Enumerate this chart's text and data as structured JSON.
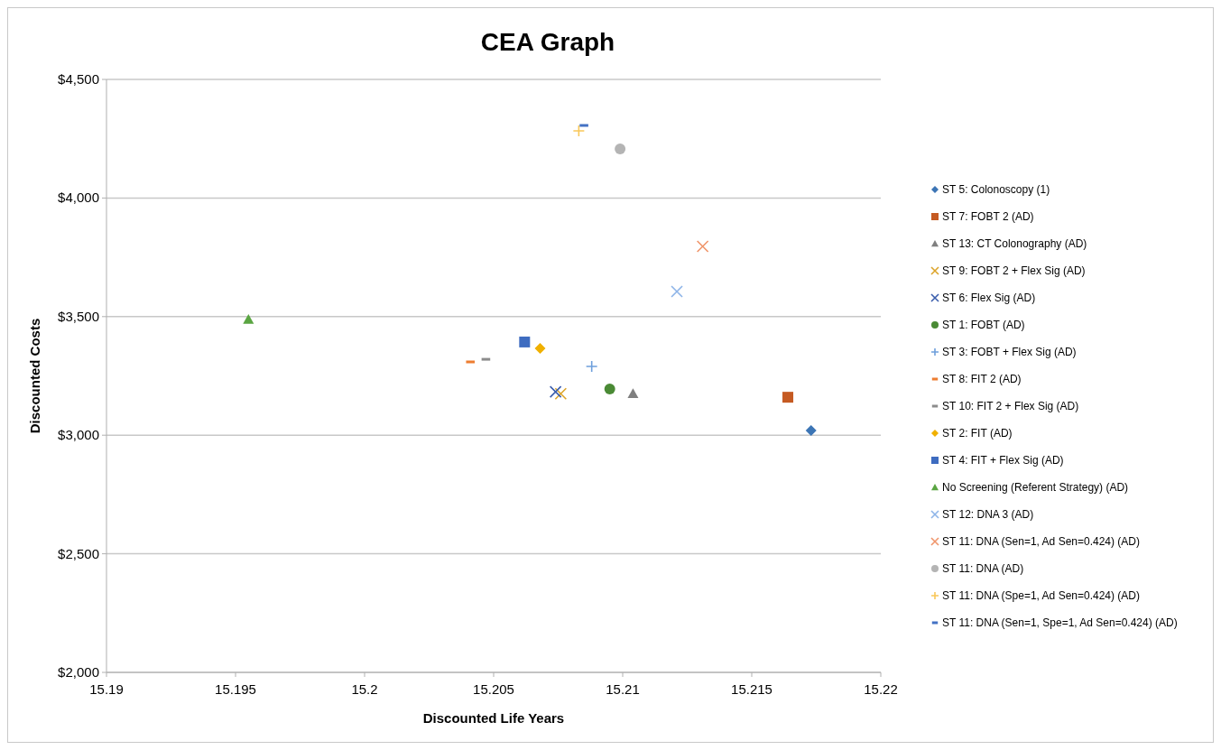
{
  "chart_data": {
    "type": "scatter",
    "title": "CEA Graph",
    "xlabel": "Discounted Life Years",
    "ylabel": "Discounted Costs",
    "xlim": [
      15.19,
      15.22
    ],
    "xticks": [
      15.19,
      15.195,
      15.2,
      15.205,
      15.21,
      15.215,
      15.22
    ],
    "ylim": [
      2000,
      4500
    ],
    "yticks": [
      {
        "value": 2000,
        "label": "$2,000"
      },
      {
        "value": 2500,
        "label": "$2,500"
      },
      {
        "value": 3000,
        "label": "$3,000"
      },
      {
        "value": 3500,
        "label": "$3,500"
      },
      {
        "value": 4000,
        "label": "$4,000"
      },
      {
        "value": 4500,
        "label": "$4,500"
      }
    ],
    "grid": "y",
    "legend": "right",
    "series": [
      {
        "name": "ST 5: Colonoscopy (1)",
        "color": "#3c75b5",
        "marker": "diamond",
        "x": [
          15.2173
        ],
        "values": [
          3020
        ]
      },
      {
        "name": "ST 7: FOBT 2 (AD)",
        "color": "#c55a22",
        "marker": "square",
        "x": [
          15.2164
        ],
        "values": [
          3160
        ]
      },
      {
        "name": "ST 13: CT Colonography (AD)",
        "color": "#7f7f7f",
        "marker": "triangle",
        "x": [
          15.2104
        ],
        "values": [
          3175
        ]
      },
      {
        "name": "ST 9: FOBT 2 + Flex Sig (AD)",
        "color": "#dca42a",
        "marker": "cross",
        "x": [
          15.2076
        ],
        "values": [
          3175
        ]
      },
      {
        "name": "ST 6: Flex Sig (AD)",
        "color": "#3a5dac",
        "marker": "cross",
        "x": [
          15.2074
        ],
        "values": [
          3183
        ]
      },
      {
        "name": "ST 1: FOBT (AD)",
        "color": "#4a8a35",
        "marker": "circle",
        "x": [
          15.2095
        ],
        "values": [
          3195
        ]
      },
      {
        "name": "ST 3: FOBT + Flex Sig (AD)",
        "color": "#6fa0dc",
        "marker": "plus",
        "x": [
          15.2088
        ],
        "values": [
          3290
        ]
      },
      {
        "name": "ST 8: FIT 2 (AD)",
        "color": "#ed7d31",
        "x": [
          15.2041
        ],
        "values": [
          3309
        ]
      },
      {
        "name": "ST 10: FIT 2 + Flex Sig (AD)",
        "color": "#8c8c8c",
        "x": [
          15.2047
        ],
        "values": [
          3320
        ]
      },
      {
        "name": "ST 2: FIT (AD)",
        "color": "#f0b000",
        "marker": "diamond",
        "x": [
          15.2068
        ],
        "values": [
          3366
        ]
      },
      {
        "name": "ST 4: FIT + Flex Sig (AD)",
        "color": "#3e6cc0",
        "marker": "square",
        "x": [
          15.2062
        ],
        "values": [
          3393
        ]
      },
      {
        "name": "No Screening (Referent Strategy) (AD)",
        "color": "#5aa542",
        "marker": "triangle",
        "x": [
          15.1955
        ],
        "values": [
          3488
        ]
      },
      {
        "name": "ST 12: DNA 3 (AD)",
        "color": "#8db4e8",
        "marker": "cross",
        "x": [
          15.2121
        ],
        "values": [
          3606
        ]
      },
      {
        "name": "ST 11: DNA (Sen=1, Ad Sen=0.424) (AD)",
        "color": "#f0956a",
        "marker": "cross",
        "x": [
          15.2131
        ],
        "values": [
          3796
        ]
      },
      {
        "name": "ST 11: DNA (AD)",
        "color": "#b4b4b4",
        "marker": "circle",
        "x": [
          15.2099
        ],
        "values": [
          4207
        ]
      },
      {
        "name": "ST 11: DNA (Spe=1, Ad Sen=0.424) (AD)",
        "color": "#f9c85a",
        "marker": "plus",
        "x": [
          15.2083
        ],
        "values": [
          4283
        ]
      },
      {
        "name": "ST 11: DNA (Sen=1, Spe=1, Ad Sen=0.424) (AD)",
        "color": "#4472c4",
        "x": [
          15.2085
        ],
        "values": [
          4306
        ]
      }
    ]
  }
}
